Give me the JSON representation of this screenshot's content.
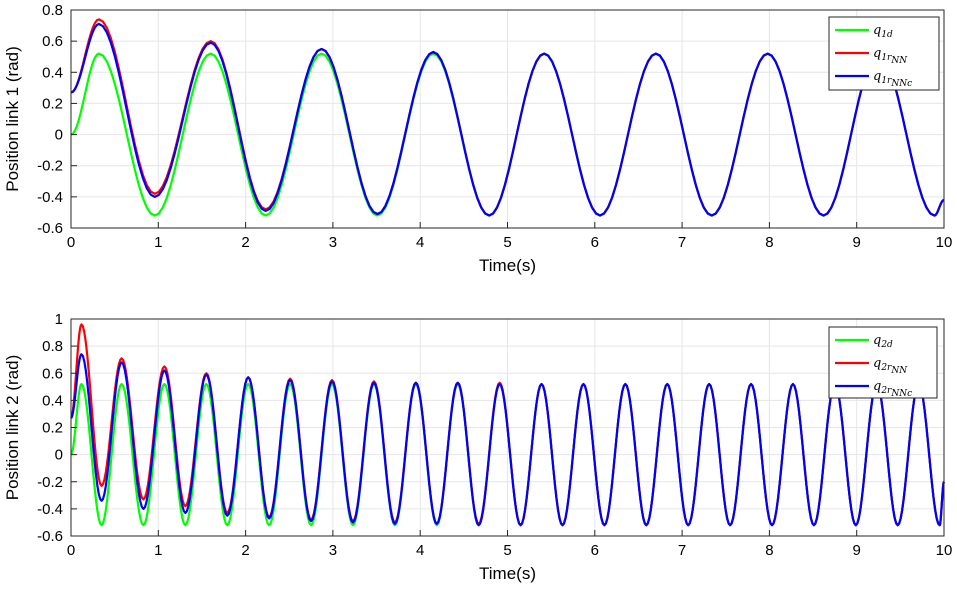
{
  "chart_data": [
    {
      "type": "line",
      "id": "top",
      "xlabel": "Time(s)",
      "ylabel": "Position link 1 (rad)",
      "xlim": [
        0,
        10
      ],
      "ylim": [
        -0.6,
        0.8
      ],
      "xticks": [
        0,
        1,
        2,
        3,
        4,
        5,
        6,
        7,
        8,
        9,
        10
      ],
      "yticks": [
        -0.6,
        -0.4,
        -0.2,
        0,
        0.2,
        0.4,
        0.6,
        0.8
      ],
      "grid": true,
      "legend_position": "top-right",
      "series": [
        {
          "name_main": "q",
          "name_sub": "1d",
          "name_subsub": "",
          "color": "#00ff00",
          "x": [
            0,
            0.32,
            0.96,
            1.6,
            2.23,
            2.87,
            3.51,
            4.15,
            4.79,
            5.42,
            6.06,
            6.7,
            7.34,
            7.98,
            8.62,
            9.25,
            9.89,
            10
          ],
          "y": [
            0,
            0.52,
            -0.52,
            0.52,
            -0.52,
            0.52,
            -0.52,
            0.52,
            -0.52,
            0.52,
            -0.52,
            0.52,
            -0.52,
            0.52,
            -0.52,
            0.52,
            -0.52,
            -0.42
          ]
        },
        {
          "name_main": "q",
          "name_sub": "1r",
          "name_subsub": "NN",
          "color": "#ff0000",
          "x": [
            0,
            0.32,
            0.96,
            1.6,
            2.23,
            2.87,
            3.51,
            4.15,
            4.79,
            5.42,
            6.06,
            6.7,
            7.34,
            7.98,
            8.62,
            9.25,
            9.89,
            10
          ],
          "y": [
            0.27,
            0.74,
            -0.38,
            0.6,
            -0.48,
            0.55,
            -0.51,
            0.53,
            -0.52,
            0.52,
            -0.52,
            0.52,
            -0.52,
            0.52,
            -0.52,
            0.52,
            -0.52,
            -0.42
          ]
        },
        {
          "name_main": "q",
          "name_sub": "1r",
          "name_subsub": "NNc",
          "color": "#0000ff",
          "x": [
            0,
            0.32,
            0.96,
            1.6,
            2.23,
            2.87,
            3.51,
            4.15,
            4.79,
            5.42,
            6.06,
            6.7,
            7.34,
            7.98,
            8.62,
            9.25,
            9.89,
            10
          ],
          "y": [
            0.27,
            0.71,
            -0.4,
            0.59,
            -0.49,
            0.55,
            -0.51,
            0.53,
            -0.52,
            0.52,
            -0.52,
            0.52,
            -0.52,
            0.52,
            -0.52,
            0.52,
            -0.52,
            -0.42
          ]
        }
      ]
    },
    {
      "type": "line",
      "id": "bottom",
      "xlabel": "Time(s)",
      "ylabel": "Position link 2 (rad)",
      "xlim": [
        0,
        10
      ],
      "ylim": [
        -0.6,
        1
      ],
      "xticks": [
        0,
        1,
        2,
        3,
        4,
        5,
        6,
        7,
        8,
        9,
        10
      ],
      "yticks": [
        -0.6,
        -0.4,
        -0.2,
        0,
        0.2,
        0.4,
        0.6,
        0.8,
        1
      ],
      "grid": true,
      "legend_position": "top-right",
      "series": [
        {
          "name_main": "q",
          "name_sub": "2d",
          "name_subsub": "",
          "color": "#00ff00",
          "x": [
            0,
            0.12,
            0.35,
            0.58,
            0.83,
            1.07,
            1.31,
            1.55,
            1.79,
            2.03,
            2.27,
            2.51,
            2.75,
            2.99,
            3.23,
            3.47,
            3.71,
            3.95,
            4.19,
            4.43,
            4.67,
            4.91,
            5.15,
            5.39,
            5.63,
            5.87,
            6.11,
            6.35,
            6.59,
            6.83,
            7.07,
            7.31,
            7.55,
            7.79,
            8.03,
            8.27,
            8.51,
            8.75,
            8.99,
            9.23,
            9.47,
            9.71,
            9.95,
            10
          ],
          "y": [
            0,
            0.52,
            -0.52,
            0.52,
            -0.52,
            0.52,
            -0.52,
            0.52,
            -0.52,
            0.52,
            -0.52,
            0.52,
            -0.52,
            0.52,
            -0.52,
            0.52,
            -0.52,
            0.52,
            -0.52,
            0.52,
            -0.52,
            0.52,
            -0.52,
            0.52,
            -0.52,
            0.52,
            -0.52,
            0.52,
            -0.52,
            0.52,
            -0.52,
            0.52,
            -0.52,
            0.52,
            -0.52,
            0.52,
            -0.52,
            0.52,
            -0.52,
            0.52,
            -0.52,
            0.52,
            -0.52,
            -0.2
          ]
        },
        {
          "name_main": "q",
          "name_sub": "2r",
          "name_subsub": "NN",
          "color": "#ff0000",
          "x": [
            0,
            0.12,
            0.35,
            0.58,
            0.83,
            1.07,
            1.31,
            1.55,
            1.79,
            2.03,
            2.27,
            2.51,
            2.75,
            2.99,
            3.23,
            3.47,
            3.71,
            3.95,
            4.19,
            4.43,
            4.67,
            4.91,
            5.15,
            5.39,
            5.63,
            5.87,
            6.11,
            6.35,
            6.59,
            6.83,
            7.07,
            7.31,
            7.55,
            7.79,
            8.03,
            8.27,
            8.51,
            8.75,
            8.99,
            9.23,
            9.47,
            9.71,
            9.95,
            10
          ],
          "y": [
            0.27,
            0.96,
            -0.23,
            0.71,
            -0.33,
            0.65,
            -0.38,
            0.6,
            -0.43,
            0.57,
            -0.46,
            0.56,
            -0.48,
            0.55,
            -0.49,
            0.54,
            -0.5,
            0.53,
            -0.51,
            0.53,
            -0.51,
            0.53,
            -0.52,
            0.52,
            -0.52,
            0.52,
            -0.52,
            0.52,
            -0.52,
            0.52,
            -0.52,
            0.52,
            -0.52,
            0.52,
            -0.52,
            0.52,
            -0.52,
            0.52,
            -0.52,
            0.52,
            -0.52,
            0.52,
            -0.52,
            -0.2
          ]
        },
        {
          "name_main": "q",
          "name_sub": "2r",
          "name_subsub": "NNc",
          "color": "#0000ff",
          "x": [
            0,
            0.12,
            0.35,
            0.58,
            0.83,
            1.07,
            1.31,
            1.55,
            1.79,
            2.03,
            2.27,
            2.51,
            2.75,
            2.99,
            3.23,
            3.47,
            3.71,
            3.95,
            4.19,
            4.43,
            4.67,
            4.91,
            5.15,
            5.39,
            5.63,
            5.87,
            6.11,
            6.35,
            6.59,
            6.83,
            7.07,
            7.31,
            7.55,
            7.79,
            8.03,
            8.27,
            8.51,
            8.75,
            8.99,
            9.23,
            9.47,
            9.71,
            9.95,
            10
          ],
          "y": [
            0.27,
            0.74,
            -0.34,
            0.68,
            -0.4,
            0.62,
            -0.43,
            0.59,
            -0.45,
            0.57,
            -0.47,
            0.55,
            -0.49,
            0.54,
            -0.5,
            0.53,
            -0.51,
            0.53,
            -0.51,
            0.53,
            -0.52,
            0.52,
            -0.52,
            0.52,
            -0.52,
            0.52,
            -0.52,
            0.52,
            -0.52,
            0.52,
            -0.52,
            0.52,
            -0.52,
            0.52,
            -0.52,
            0.52,
            -0.52,
            0.52,
            -0.52,
            0.52,
            -0.52,
            0.52,
            -0.52,
            -0.2
          ]
        }
      ]
    }
  ]
}
